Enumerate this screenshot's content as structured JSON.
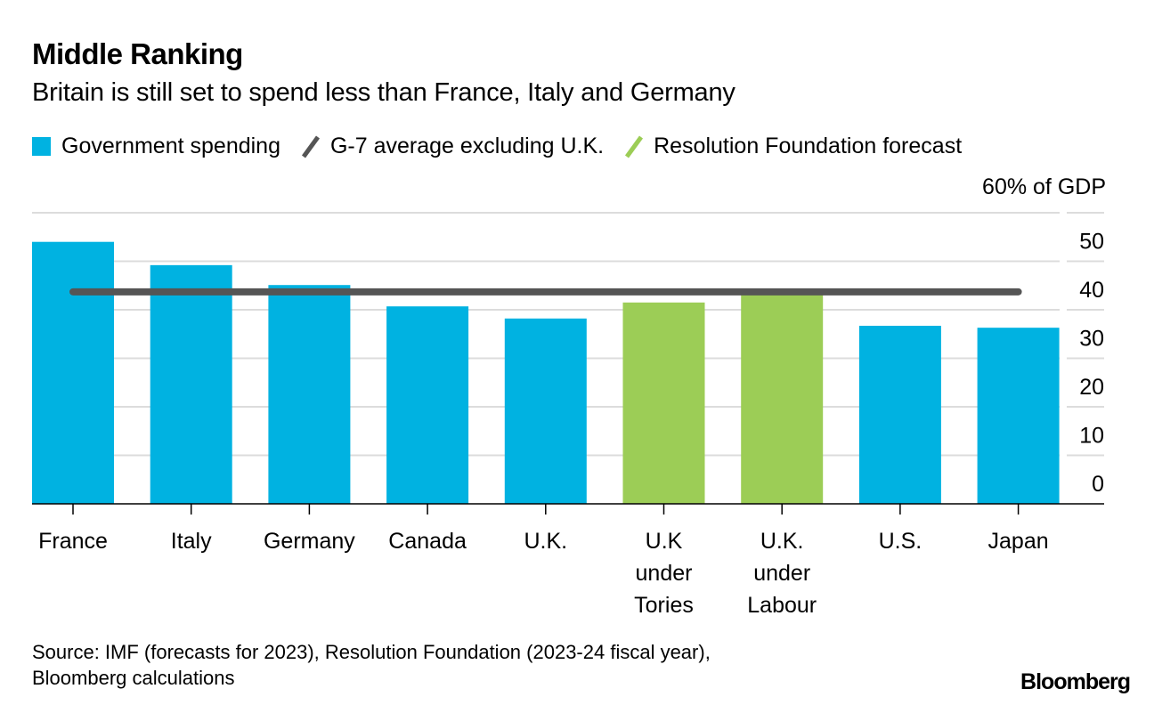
{
  "header": {
    "title": "Middle Ranking",
    "subtitle": "Britain is still set to spend less than France, Italy and Germany"
  },
  "legend": [
    {
      "label": "Government spending",
      "color": "#00b2e1",
      "shape": "square"
    },
    {
      "label": "G-7 average excluding U.K.",
      "color": "#555555",
      "shape": "slash"
    },
    {
      "label": "Resolution Foundation forecast",
      "color": "#9ccd56",
      "shape": "slash"
    }
  ],
  "footer": {
    "source_line1": "Source: IMF (forecasts for 2023), Resolution Foundation (2023-24 fiscal year),",
    "source_line2": "Bloomberg calculations",
    "brand": "Bloomberg"
  },
  "chart_data": {
    "type": "bar",
    "title": "Middle Ranking",
    "subtitle": "Britain is still set to spend less than France, Italy and Germany",
    "ylabel": "% of GDP",
    "unit_label": "60% of GDP",
    "ylim": [
      0,
      60
    ],
    "yticks": [
      0,
      10,
      20,
      30,
      40,
      50,
      60
    ],
    "ytick_labels": [
      "0",
      "10",
      "20",
      "30",
      "40",
      "50",
      "60% of GDP"
    ],
    "grid": true,
    "legend_position": "top-left",
    "categories": [
      [
        "France"
      ],
      [
        "Italy"
      ],
      [
        "Germany"
      ],
      [
        "Canada"
      ],
      [
        "U.K."
      ],
      [
        "U.K",
        "under",
        "Tories"
      ],
      [
        "U.K.",
        "under",
        "Labour"
      ],
      [
        "U.S."
      ],
      [
        "Japan"
      ]
    ],
    "series": [
      {
        "name": "Government spending",
        "values": [
          54.0,
          49.2,
          45.1,
          40.7,
          38.2,
          null,
          null,
          36.7,
          36.3
        ],
        "color": "#00b2e1"
      },
      {
        "name": "Resolution Foundation forecast",
        "values": [
          null,
          null,
          null,
          null,
          null,
          41.5,
          43.5,
          null,
          null
        ],
        "color": "#9ccd56"
      }
    ],
    "reference_line": {
      "name": "G-7 average excluding U.K.",
      "value": 43.7,
      "color": "#555555",
      "from_category": 0,
      "to_category": 8
    }
  }
}
